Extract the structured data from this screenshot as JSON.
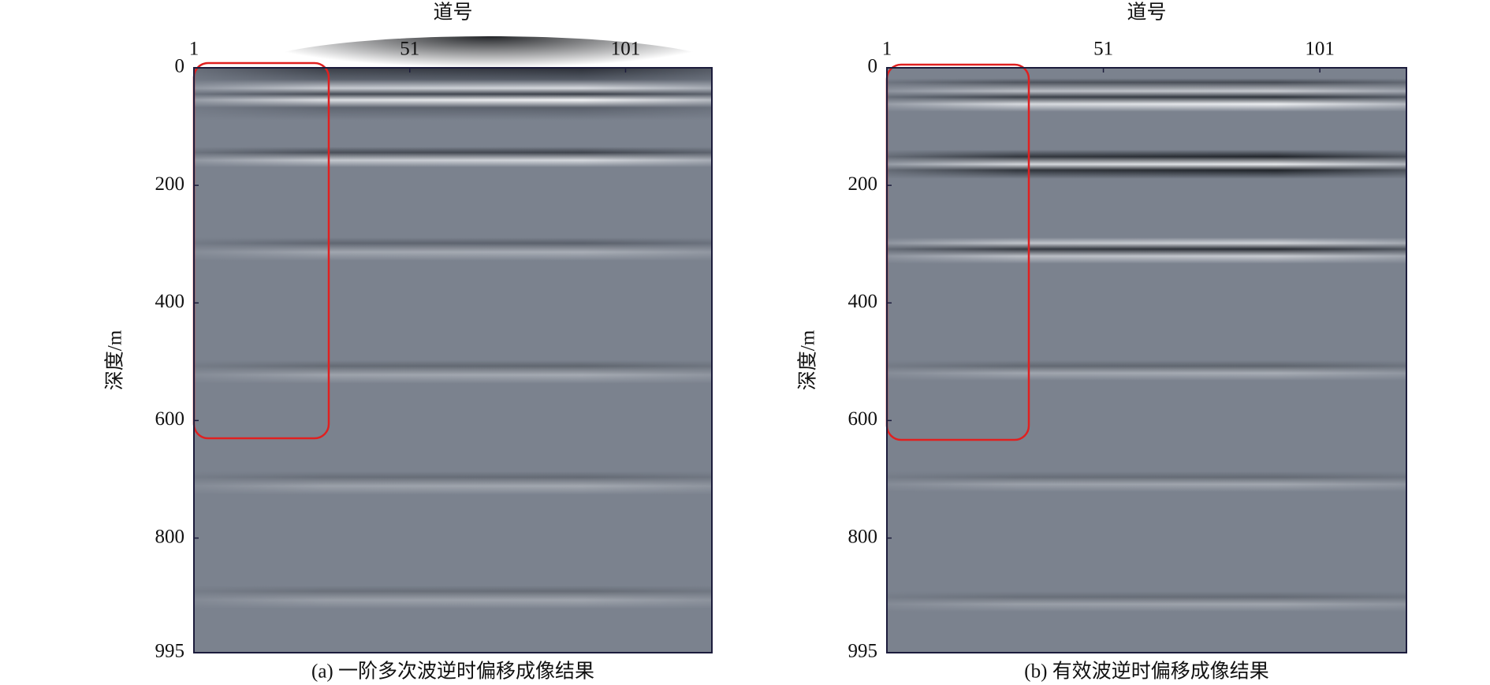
{
  "chart_data": [
    {
      "type": "image",
      "xlabel": "道号",
      "ylabel": "深度/m",
      "caption": "(a) 一阶多次波逆时偏移成像结果",
      "xlim": [
        1,
        121
      ],
      "xticks": [
        1,
        51,
        101
      ],
      "ylim": [
        0,
        995
      ],
      "yticks": [
        0,
        200,
        400,
        600,
        800,
        995
      ]
    },
    {
      "type": "image",
      "xlabel": "道号",
      "ylabel": "深度/m",
      "caption": "(b) 有效波逆时偏移成像结果",
      "xlim": [
        1,
        121
      ],
      "xticks": [
        1,
        51,
        101
      ],
      "ylim": [
        0,
        995
      ],
      "yticks": [
        0,
        200,
        400,
        600,
        800,
        995
      ]
    }
  ]
}
